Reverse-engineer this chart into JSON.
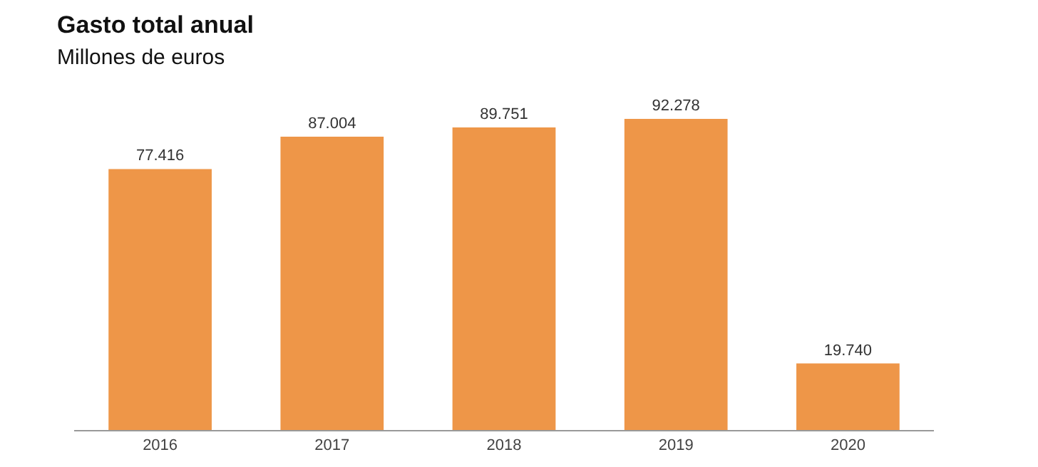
{
  "chart_data": {
    "type": "bar",
    "title": "Gasto total anual",
    "subtitle": "Millones de euros",
    "categories": [
      "2016",
      "2017",
      "2018",
      "2019",
      "2020"
    ],
    "values": [
      77416,
      87004,
      89751,
      92278,
      19740
    ],
    "value_labels": [
      "77.416",
      "87.004",
      "89.751",
      "92.278",
      "19.740"
    ],
    "color": "#ee9648"
  }
}
